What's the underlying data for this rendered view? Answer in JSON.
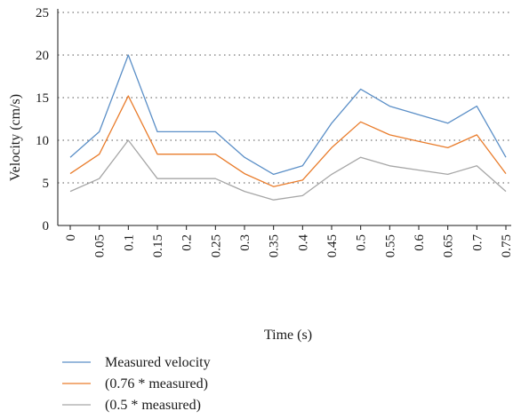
{
  "chart_data": {
    "type": "line",
    "xlabel": "Time (s)",
    "ylabel": "Velocity (cm/s)",
    "ylim": [
      0,
      25
    ],
    "yticks": [
      0,
      5,
      10,
      15,
      20,
      25
    ],
    "grid": "horizontal-dotted",
    "legend_position": "bottom-left",
    "categories": [
      "0",
      "0.05",
      "0.1",
      "0.15",
      "0.2",
      "0.25",
      "0.3",
      "0.35",
      "0.4",
      "0.45",
      "0.5",
      "0.55",
      "0.6",
      "0.65",
      "0.7",
      "0.75"
    ],
    "series": [
      {
        "name": "Measured velocity",
        "color": "#5b8fc7",
        "values": [
          8,
          11,
          20,
          11,
          11,
          11,
          8,
          6,
          7,
          12,
          16,
          14,
          13,
          12,
          14,
          8
        ]
      },
      {
        "name": "(0.76 * measured)",
        "color": "#e97c2b",
        "values": [
          6.08,
          8.36,
          15.2,
          8.36,
          8.36,
          8.36,
          6.08,
          4.56,
          5.32,
          9.12,
          12.16,
          10.64,
          9.88,
          9.12,
          10.64,
          6.08
        ]
      },
      {
        "name": "(0.5 * measured)",
        "color": "#a6a6a6",
        "values": [
          4,
          5.5,
          10,
          5.5,
          5.5,
          5.5,
          4,
          3,
          3.5,
          6,
          8,
          7,
          6.5,
          6,
          7,
          4
        ]
      }
    ]
  }
}
